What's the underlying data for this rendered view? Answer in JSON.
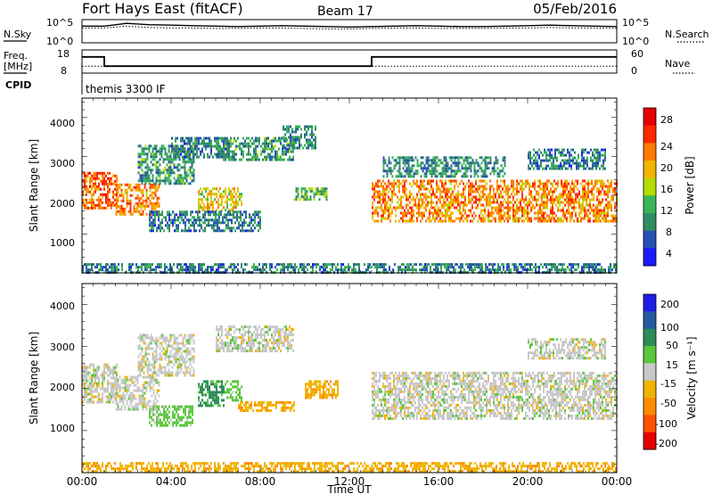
{
  "header": {
    "station": "Fort Hays East (fitACF)",
    "beam": "Beam 17",
    "date": "05/Feb/2016"
  },
  "noise_panel": {
    "left_label": "N.Sky",
    "right_label": "N.Search",
    "tick_high": "10^5",
    "tick_low": "10^0",
    "sky_level": [
      3.6,
      3.6,
      4.2,
      3.9,
      3.8,
      3.7,
      3.6,
      3.5,
      3.6,
      3.7,
      3.6,
      3.5,
      3.4,
      3.5,
      3.6,
      3.7,
      3.6,
      3.5,
      3.5,
      3.6,
      3.7,
      3.8,
      3.7,
      3.6,
      3.5
    ],
    "search_level": [
      3.2,
      3.2,
      3.6,
      3.3,
      3.2,
      3.2,
      3.1,
      3.1,
      3.2,
      3.2,
      3.1,
      3.0,
      3.0,
      3.1,
      3.2,
      3.2,
      3.1,
      3.1,
      3.1,
      3.2,
      3.2,
      3.3,
      3.2,
      3.2,
      3.1
    ]
  },
  "freq_panel": {
    "left_label_1": "Freq.",
    "left_label_2": "[MHz]",
    "right_label": "Nave",
    "left_ticks": [
      "18",
      "8"
    ],
    "right_ticks": [
      "60",
      "0"
    ],
    "cpid_label": "CPID",
    "program": "themis 3300 IF",
    "freq_steps": [
      {
        "start_hour": 0,
        "end_hour": 1,
        "mhz": 15
      },
      {
        "start_hour": 1,
        "end_hour": 13,
        "mhz": 11
      },
      {
        "start_hour": 13,
        "end_hour": 24,
        "mhz": 15
      }
    ],
    "nave_level": 18
  },
  "power_panel": {
    "ylabel": "Slant Range [km]",
    "yticks": [
      "4000",
      "3000",
      "2000",
      "1000"
    ],
    "colorbar_label": "Power [dB]",
    "colorbar_ticks": [
      "28",
      "24",
      "20",
      "16",
      "12",
      "8",
      "4"
    ],
    "colors": [
      "#1a1aff",
      "#2850b4",
      "#328c64",
      "#3cb45a",
      "#b4dc00",
      "#f0b400",
      "#ff7800",
      "#ff2800",
      "#e60000"
    ]
  },
  "velocity_panel": {
    "ylabel": "Slant Range [km]",
    "yticks": [
      "4000",
      "3000",
      "2000",
      "1000"
    ],
    "colorbar_label": "Velocity [m s⁻¹]",
    "colorbar_ticks": [
      "200",
      "100",
      "50",
      "15",
      "-15",
      "-50",
      "-100",
      "-200"
    ],
    "colors": [
      "#1e1ee6",
      "#285aa0",
      "#2d8c5a",
      "#5ac83c",
      "#c8c8c8",
      "#f0b400",
      "#ff8c00",
      "#ff5000",
      "#e60000"
    ]
  },
  "xaxis": {
    "ticks": [
      "00:00",
      "04:00",
      "08:00",
      "12:00",
      "16:00",
      "20:00",
      "00:00"
    ],
    "label": "Time UT"
  },
  "chart_data": {
    "type": "heatmap",
    "title": "Fort Hays East (fitACF)",
    "xlabel": "Time UT",
    "ylabel": "Slant Range [km]",
    "xlim": [
      0,
      24
    ],
    "ylim": [
      0,
      4500
    ],
    "power_range_db": [
      0,
      32
    ],
    "velocity_range": [
      -250,
      250
    ],
    "power_echo_regions": [
      {
        "t0": 0.0,
        "t1": 1.6,
        "r0": 1700,
        "r1": 2600,
        "db": 24
      },
      {
        "t0": 1.5,
        "t1": 3.5,
        "r0": 1500,
        "r1": 2300,
        "db": 22
      },
      {
        "t0": 2.5,
        "t1": 5.0,
        "r0": 2300,
        "r1": 3300,
        "db": 10
      },
      {
        "t0": 4.0,
        "t1": 6.5,
        "r0": 3000,
        "r1": 3500,
        "db": 8
      },
      {
        "t0": 5.2,
        "t1": 7.2,
        "r0": 1600,
        "r1": 2200,
        "db": 18
      },
      {
        "t0": 3.0,
        "t1": 8.0,
        "r0": 1100,
        "r1": 1600,
        "db": 8
      },
      {
        "t0": 6.0,
        "t1": 9.5,
        "r0": 2900,
        "r1": 3500,
        "db": 10
      },
      {
        "t0": 9.5,
        "t1": 11.0,
        "r0": 1900,
        "r1": 2200,
        "db": 12
      },
      {
        "t0": 9.0,
        "t1": 10.5,
        "r0": 3200,
        "r1": 3800,
        "db": 9
      },
      {
        "t0": 13.0,
        "t1": 24.0,
        "r0": 1300,
        "r1": 2400,
        "db": 22
      },
      {
        "t0": 13.5,
        "t1": 19.0,
        "r0": 2500,
        "r1": 3000,
        "db": 9
      },
      {
        "t0": 20.0,
        "t1": 23.5,
        "r0": 2700,
        "r1": 3200,
        "db": 8
      },
      {
        "t0": 0.0,
        "t1": 24.0,
        "r0": 0,
        "r1": 250,
        "db": 8
      }
    ],
    "velocity_echo_regions": [
      {
        "t0": 0.0,
        "t1": 1.6,
        "r0": 1700,
        "r1": 2600,
        "v": 0
      },
      {
        "t0": 1.5,
        "t1": 3.5,
        "r0": 1500,
        "r1": 2300,
        "v": 0
      },
      {
        "t0": 2.5,
        "t1": 5.0,
        "r0": 2300,
        "r1": 3300,
        "v": 0
      },
      {
        "t0": 5.2,
        "t1": 6.4,
        "r0": 1600,
        "r1": 2200,
        "v": 60
      },
      {
        "t0": 6.4,
        "t1": 7.2,
        "r0": 1700,
        "r1": 2200,
        "v": 30
      },
      {
        "t0": 3.0,
        "t1": 5.0,
        "r0": 1100,
        "r1": 1600,
        "v": 30
      },
      {
        "t0": 6.0,
        "t1": 9.5,
        "r0": 2900,
        "r1": 3500,
        "v": 0
      },
      {
        "t0": 7.0,
        "t1": 9.5,
        "r0": 1500,
        "r1": 1700,
        "v": -40
      },
      {
        "t0": 10.0,
        "t1": 11.5,
        "r0": 1800,
        "r1": 2200,
        "v": -40
      },
      {
        "t0": 13.0,
        "t1": 24.0,
        "r0": 1300,
        "r1": 2400,
        "v": 0
      },
      {
        "t0": 20.0,
        "t1": 23.5,
        "r0": 2700,
        "r1": 3200,
        "v": 0
      },
      {
        "t0": 0.0,
        "t1": 24.0,
        "r0": 0,
        "r1": 250,
        "v": -40
      }
    ]
  }
}
